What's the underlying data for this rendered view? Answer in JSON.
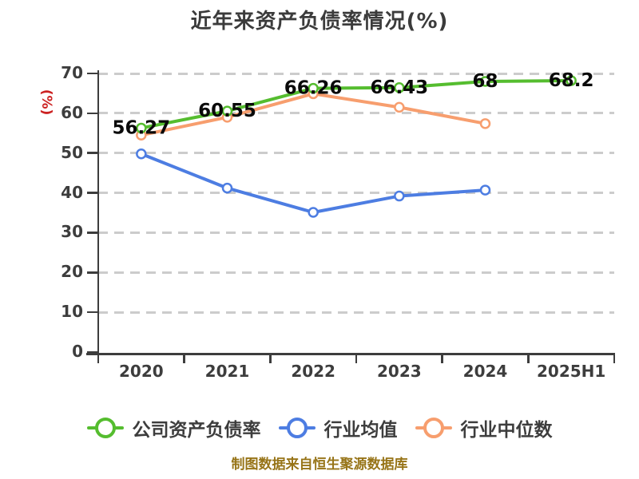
{
  "title": "近年来资产负债率情况(%)",
  "y_axis_label": "(%)",
  "caption": "制图数据来自恒生聚源数据库",
  "colors": {
    "title_text": "#3b3b3b",
    "axis_text": "#3d3d3d",
    "y_axis_label_text": "#cc2222",
    "axis_line": "#3d3d3d",
    "gridline": "#cccccc",
    "data_label": "#0a0a0a",
    "caption_text": "#977418",
    "series_company": "#55bd2f",
    "series_industry_mean": "#4d7de2",
    "series_industry_median": "#f79e6e"
  },
  "chart_data": {
    "type": "line",
    "title": "近年来资产负债率情况(%)",
    "ylabel": "(%)",
    "categories": [
      "2020",
      "2021",
      "2022",
      "2023",
      "2024",
      "2025H1"
    ],
    "series": [
      {
        "name": "公司资产负债率",
        "color": "#55bd2f",
        "values": [
          56.27,
          60.55,
          66.26,
          66.43,
          68,
          68.2
        ],
        "point_labels": [
          "56.27",
          "60.55",
          "66.26",
          "66.43",
          "68",
          "68.2"
        ]
      },
      {
        "name": "行业均值",
        "color": "#4d7de2",
        "values": [
          49.8,
          41.2,
          35.1,
          39.2,
          40.7
        ],
        "point_labels": []
      },
      {
        "name": "行业中位数",
        "color": "#f79e6e",
        "values": [
          54.5,
          59.0,
          64.9,
          61.5,
          57.4
        ],
        "point_labels": []
      }
    ],
    "ylim": [
      0,
      70
    ],
    "yticks": [
      0,
      10,
      20,
      30,
      40,
      50,
      60,
      70
    ],
    "grid": "horizontal-dashed",
    "legend_position": "bottom",
    "marker": "circle-white-fill"
  },
  "legend": {
    "items": [
      {
        "label": "公司资产负债率",
        "color": "#55bd2f"
      },
      {
        "label": "行业均值",
        "color": "#4d7de2"
      },
      {
        "label": "行业中位数",
        "color": "#f79e6e"
      }
    ]
  }
}
